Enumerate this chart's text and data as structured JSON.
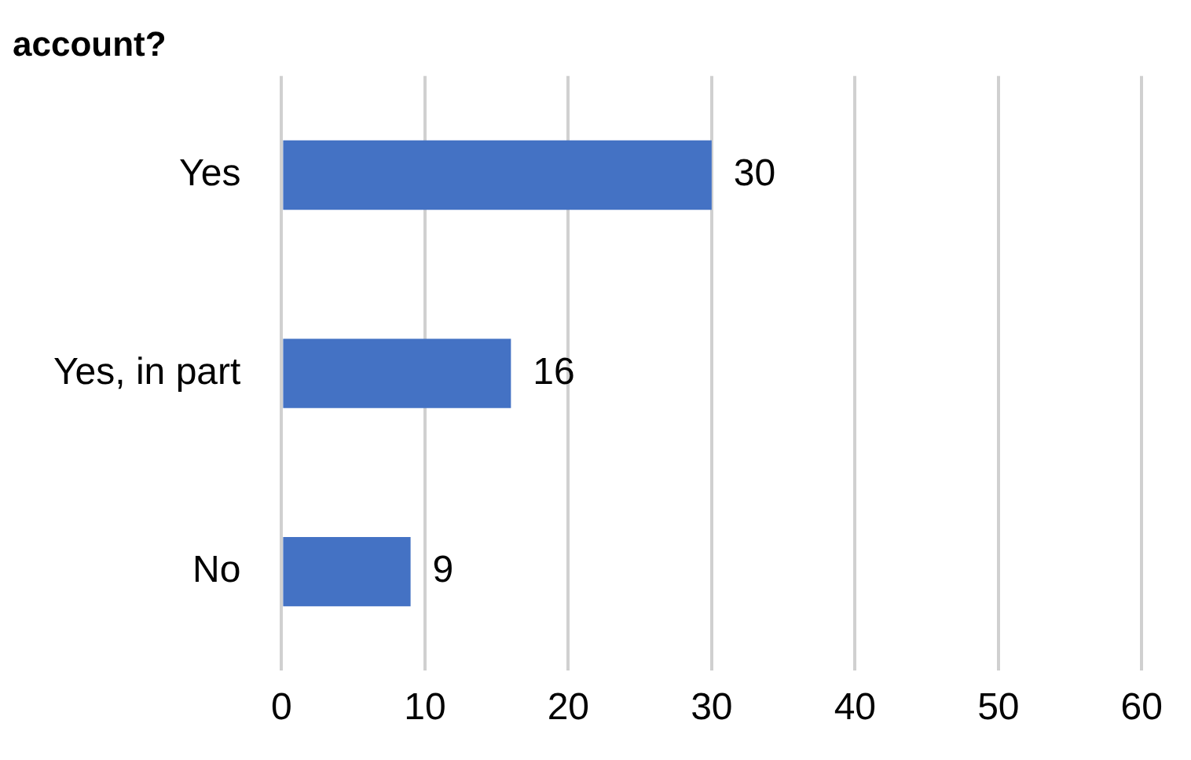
{
  "chart_data": {
    "type": "bar",
    "orientation": "horizontal",
    "title": "account?",
    "categories": [
      "Yes",
      "Yes, in part",
      "No"
    ],
    "values": [
      30,
      16,
      9
    ],
    "color": "#4472c4",
    "xlim": [
      0,
      60
    ],
    "xticks": [
      0,
      10,
      20,
      30,
      40,
      50,
      60
    ],
    "grid": "x",
    "data_labels": true,
    "legend": false
  }
}
